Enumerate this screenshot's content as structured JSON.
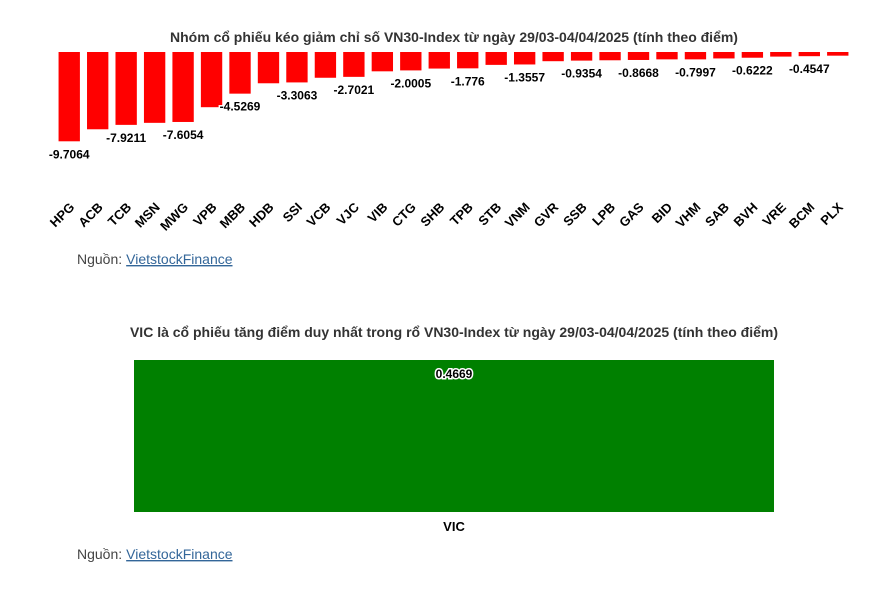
{
  "chart_data": [
    {
      "type": "bar",
      "title": "Nhóm cổ phiếu kéo giảm chỉ số VN30-Index từ ngày 29/03-04/04/2025 (tính theo điểm)",
      "categories": [
        "HPG",
        "ACB",
        "TCB",
        "MSN",
        "MWG",
        "VPB",
        "MBB",
        "HDB",
        "SSI",
        "VCB",
        "VJC",
        "VIB",
        "CTG",
        "SHB",
        "TPB",
        "STB",
        "VNM",
        "GVR",
        "SSB",
        "LPB",
        "GAS",
        "BID",
        "VHM",
        "SAB",
        "BVH",
        "VRE",
        "BCM",
        "PLX"
      ],
      "values": [
        -9.7064,
        -8.4,
        -7.9211,
        -7.7,
        -7.6054,
        -6.0,
        -4.5269,
        -3.4,
        -3.3063,
        -2.8,
        -2.7021,
        -2.1,
        -2.0005,
        -1.8,
        -1.776,
        -1.4,
        -1.3557,
        -1.0,
        -0.9354,
        -0.9,
        -0.8668,
        -0.8,
        -0.7997,
        -0.7,
        -0.6222,
        -0.5,
        -0.4547,
        -0.4
      ],
      "value_labels": [
        "-9.7064",
        null,
        "-7.9211",
        null,
        "-7.6054",
        null,
        "-4.5269",
        null,
        "-3.3063",
        null,
        "-2.7021",
        null,
        "-2.0005",
        null,
        "-1.776",
        null,
        "-1.3557",
        null,
        "-0.9354",
        null,
        "-0.8668",
        null,
        "-0.7997",
        null,
        "-0.6222",
        null,
        "-0.4547",
        null
      ],
      "color": "#ff0000",
      "ylim": [
        -10,
        0
      ],
      "source_label": "Nguồn:",
      "source_link": "VietstockFinance"
    },
    {
      "type": "bar",
      "title": "VIC là cổ phiếu tăng điểm duy nhất trong rổ VN30-Index từ ngày 29/03-04/04/2025 (tính theo điểm)",
      "categories": [
        "VIC"
      ],
      "values": [
        0.4669
      ],
      "color": "#008000",
      "ylim": [
        0,
        0.4669
      ],
      "source_label": "Nguồn:",
      "source_link": "VietstockFinance"
    }
  ]
}
